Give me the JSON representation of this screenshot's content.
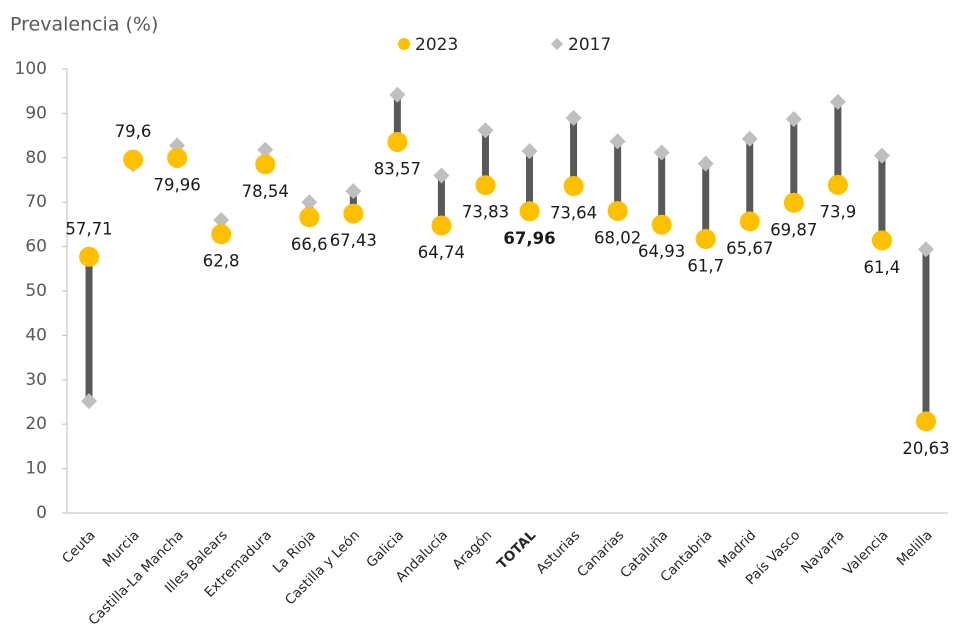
{
  "chart_data": {
    "type": "dumbbell",
    "title": "Prevalencia (%)",
    "categories": [
      "Ceuta",
      "Murcia",
      "Castilla-La Mancha",
      "Illes Balears",
      "Extremadura",
      "La Rioja",
      "Castilla y León",
      "Galicia",
      "Andalucía",
      "Aragón",
      "TOTAL",
      "Asturias",
      "Canarias",
      "Cataluña",
      "Cantabria",
      "Madrid",
      "País Vasco",
      "Navarra",
      "Valencia",
      "Melilla"
    ],
    "bold_category_index": 10,
    "series": [
      {
        "name": "2023",
        "color": "#ffc000",
        "marker": "circle",
        "values": [
          57.71,
          79.6,
          79.96,
          62.8,
          78.54,
          66.6,
          67.43,
          83.57,
          64.74,
          73.83,
          67.96,
          73.64,
          68.02,
          64.93,
          61.7,
          65.67,
          69.87,
          73.9,
          61.4,
          20.63
        ],
        "value_labels": [
          "57,71",
          "79,6",
          "79,96",
          "62,8",
          "78,54",
          "66,6",
          "67,43",
          "83,57",
          "64,74",
          "73,83",
          "67,96",
          "73,64",
          "68,02",
          "64,93",
          "61,7",
          "65,67",
          "69,87",
          "73,9",
          "61,4",
          "20,63"
        ]
      },
      {
        "name": "2017",
        "color": "#bfbfbf",
        "marker": "diamond",
        "values": [
          25.2,
          78.5,
          82.8,
          66,
          81.8,
          70,
          72.5,
          94.2,
          76,
          86.2,
          81.5,
          89,
          83.7,
          81.2,
          78.7,
          84.3,
          88.7,
          92.6,
          80.5,
          59.4
        ]
      }
    ],
    "connector_color": "#595959",
    "ylim": [
      0,
      100
    ],
    "yticks": [
      0,
      10,
      20,
      30,
      40,
      50,
      60,
      70,
      80,
      90,
      100
    ],
    "grid": false
  }
}
